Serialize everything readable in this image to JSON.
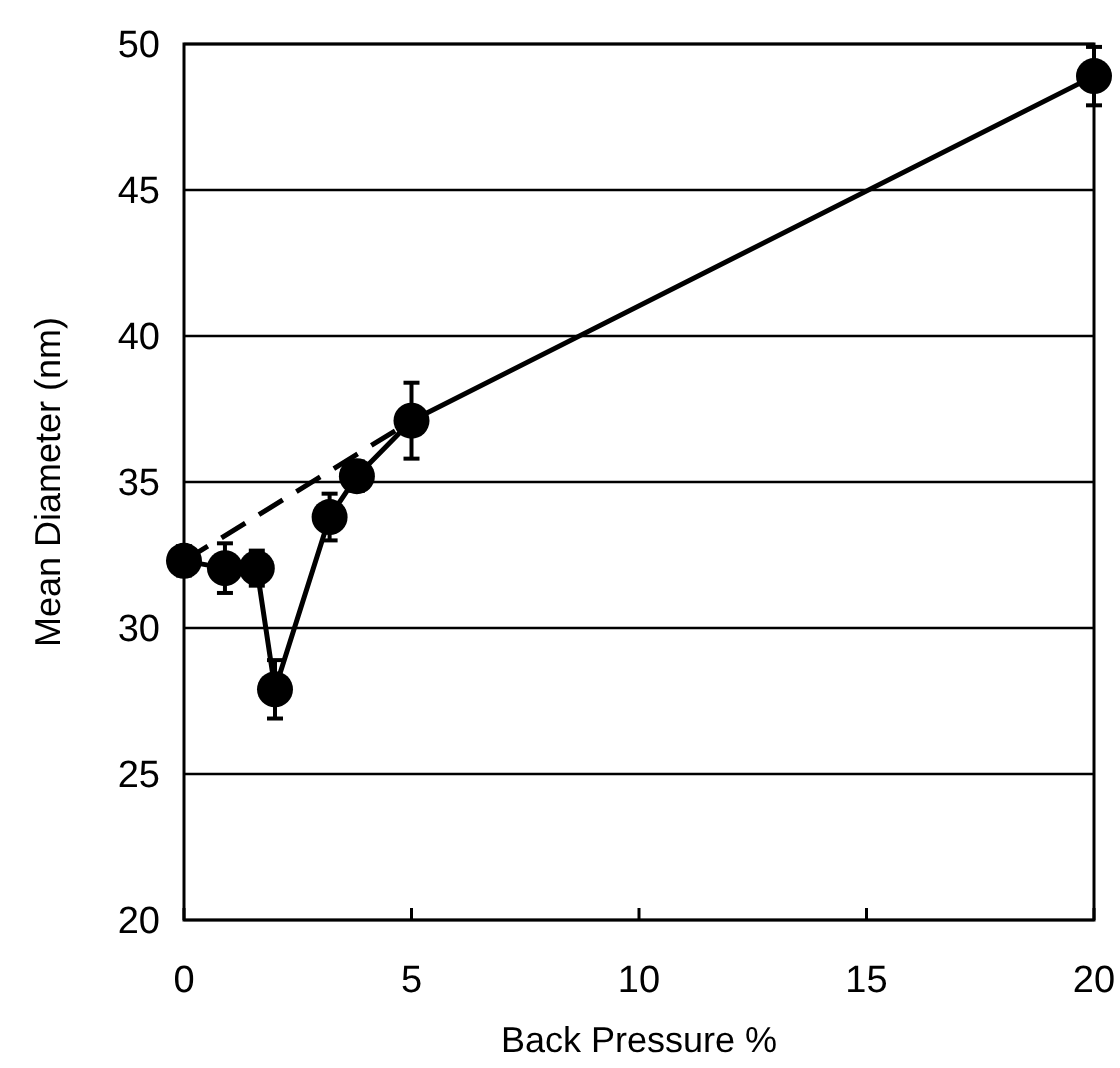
{
  "chart_data": {
    "type": "line",
    "xlabel": "Back Pressure %",
    "ylabel": "Mean Diameter (nm)",
    "xlim": [
      0,
      20
    ],
    "xticks": [
      0,
      5,
      10,
      15,
      20
    ],
    "ylim": [
      20,
      50
    ],
    "yticks": [
      20,
      25,
      30,
      35,
      40,
      45,
      50
    ],
    "grid": "y",
    "series": [
      {
        "color": "#000000",
        "marker": "circle",
        "line_style": "solid",
        "x": [
          0,
          0.9,
          1.6,
          2,
          3.2,
          3.8,
          5,
          20
        ],
        "values": [
          32.3,
          32.05,
          32.05,
          27.9,
          33.8,
          35.2,
          37.1,
          48.9
        ],
        "errors": [
          0.5,
          0.85,
          0.6,
          1,
          0.8,
          0.5,
          1.3,
          1
        ]
      },
      {
        "type": "line",
        "color": "#000000",
        "marker": "none",
        "line_style": "dashed",
        "x": [
          0,
          5
        ],
        "values": [
          32.3,
          37.1
        ]
      }
    ]
  }
}
